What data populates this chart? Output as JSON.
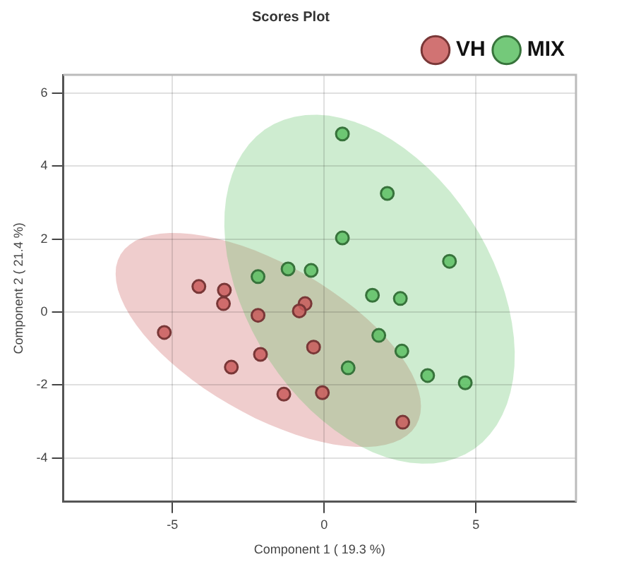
{
  "chart_data": {
    "type": "scatter",
    "title": "Scores Plot",
    "xlabel": "Component 1 ( 19.3 %)",
    "ylabel": "Component 2 ( 21.4 %)",
    "xlim": [
      -8.6,
      8.3
    ],
    "xticks": [
      -5,
      0,
      5
    ],
    "ylim": [
      -5.2,
      6.5
    ],
    "yticks": [
      -4,
      -2,
      0,
      2,
      4,
      6
    ],
    "grid": true,
    "legend": "top right",
    "marker": "circle",
    "series": [
      {
        "name": "VH",
        "color": "#c95b5b",
        "x": [
          -4.13,
          -3.29,
          -3.32,
          -2.18,
          -0.63,
          -0.82,
          -5.27,
          -2.1,
          -0.35,
          -3.06,
          -1.33,
          -0.06,
          2.59
        ],
        "values": [
          0.7,
          0.6,
          0.23,
          -0.09,
          0.23,
          0.03,
          -0.56,
          -1.16,
          -0.96,
          -1.51,
          -2.25,
          -2.21,
          -3.02
        ]
      },
      {
        "name": "MIX",
        "color": "#5cbf63",
        "x": [
          -2.18,
          -1.19,
          -0.43,
          0.6,
          4.13,
          1.59,
          2.51,
          1.8,
          2.56,
          0.79,
          3.41,
          4.65,
          0.6,
          2.08
        ],
        "values": [
          0.97,
          1.18,
          1.14,
          2.03,
          1.39,
          0.46,
          0.37,
          -0.64,
          -1.07,
          -1.53,
          -1.74,
          -1.94,
          4.88,
          3.25
        ]
      }
    ]
  }
}
